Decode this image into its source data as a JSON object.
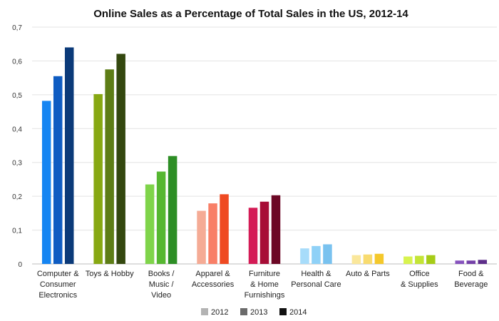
{
  "chart_data": {
    "type": "bar",
    "title": "Online Sales as a Percentage of Total Sales in the US, 2012-14",
    "xlabel": "",
    "ylabel": "",
    "ylim": [
      0,
      0.7
    ],
    "yticks": [
      "0",
      "0,1",
      "0,2",
      "0,3",
      "0,4",
      "0,5",
      "0,6",
      "0,7"
    ],
    "ytick_values": [
      0,
      0.1,
      0.2,
      0.3,
      0.4,
      0.5,
      0.6,
      0.7
    ],
    "grid": true,
    "legend_position": "bottom-center",
    "categories": [
      [
        "Computer &",
        "Consumer",
        "Electronics"
      ],
      [
        "Toys & Hobby"
      ],
      [
        "Books /",
        "Music /",
        "Video"
      ],
      [
        "Apparel &",
        "Accessories"
      ],
      [
        "Furniture",
        "& Home",
        "Furnishings"
      ],
      [
        "Health &",
        "Personal Care"
      ],
      [
        "Auto & Parts"
      ],
      [
        "Office",
        "& Supplies"
      ],
      [
        "Food &",
        "Beverage"
      ]
    ],
    "series": [
      {
        "name": "2012",
        "values": [
          0.482,
          0.502,
          0.235,
          0.157,
          0.166,
          0.046,
          0.026,
          0.022,
          0.01
        ]
      },
      {
        "name": "2013",
        "values": [
          0.555,
          0.575,
          0.273,
          0.179,
          0.184,
          0.053,
          0.028,
          0.024,
          0.01
        ]
      },
      {
        "name": "2014",
        "values": [
          0.64,
          0.621,
          0.319,
          0.206,
          0.203,
          0.058,
          0.03,
          0.026,
          0.012
        ]
      }
    ],
    "category_colors": [
      [
        "#1585f2",
        "#0f5cc2",
        "#0b3a79"
      ],
      [
        "#87a812",
        "#5d7d16",
        "#34480f"
      ],
      [
        "#7fd44a",
        "#56b731",
        "#2d8e25"
      ],
      [
        "#f5ab95",
        "#f87f67",
        "#ef4a22"
      ],
      [
        "#d41b56",
        "#a70d36",
        "#6c0725"
      ],
      [
        "#a7dcfa",
        "#8fd1f7",
        "#79c2ef"
      ],
      [
        "#fae79b",
        "#f8db6f",
        "#f4c82b"
      ],
      [
        "#d8f34f",
        "#c4e536",
        "#a6cc17"
      ],
      [
        "#8652bd",
        "#7440a8",
        "#5d2e89"
      ]
    ],
    "legend_colors": [
      "#b3b3b3",
      "#6b6b6b",
      "#111111"
    ]
  }
}
